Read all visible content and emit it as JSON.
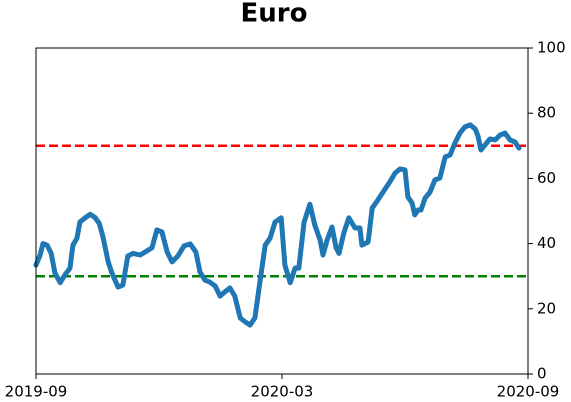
{
  "chart_data": {
    "type": "line",
    "title": "Euro",
    "x": [
      0,
      0.1,
      0.17,
      0.27,
      0.37,
      0.46,
      0.59,
      0.71,
      0.83,
      0.9,
      1,
      1.07,
      1.2,
      1.32,
      1.44,
      1.54,
      1.63,
      1.76,
      1.85,
      2,
      2.12,
      2.24,
      2.37,
      2.54,
      2.66,
      2.83,
      2.95,
      3.07,
      3.2,
      3.32,
      3.46,
      3.61,
      3.76,
      3.9,
      4,
      4.12,
      4.24,
      4.37,
      4.49,
      4.61,
      4.73,
      4.85,
      4.98,
      5.1,
      5.22,
      5.34,
      5.46,
      5.59,
      5.71,
      5.83,
      5.98,
      6.07,
      6.2,
      6.32,
      6.41,
      6.54,
      6.68,
      6.8,
      6.93,
      7,
      7.1,
      7.22,
      7.32,
      7.39,
      7.51,
      7.63,
      7.78,
      7.9,
      7.95,
      8.1,
      8.2,
      8.34,
      8.51,
      8.63,
      8.76,
      8.88,
      9,
      9.07,
      9.17,
      9.24,
      9.32,
      9.39,
      9.49,
      9.61,
      9.73,
      9.85,
      9.98,
      10.1,
      10.22,
      10.34,
      10.46,
      10.59,
      10.71,
      10.78,
      10.85,
      10.95,
      11.07,
      11.2,
      11.32,
      11.44,
      11.56,
      11.68,
      11.78
    ],
    "values": [
      33.4,
      36.5,
      40,
      39.5,
      37,
      31,
      28,
      30.5,
      32.5,
      39.5,
      41.7,
      46.6,
      47.9,
      49,
      48,
      46.3,
      42.3,
      34.4,
      31,
      26.7,
      27.3,
      36.2,
      37,
      36.5,
      37.4,
      38.7,
      44.2,
      43.6,
      37.4,
      34.4,
      36.2,
      39.3,
      39.9,
      37.4,
      31.3,
      28.8,
      28.2,
      27,
      23.9,
      25.2,
      26.4,
      23.9,
      17.2,
      16,
      15,
      17.2,
      28.2,
      39.5,
      41.7,
      46.6,
      47.9,
      33.4,
      28,
      32.5,
      32.5,
      46.6,
      52.1,
      45.7,
      41.1,
      36.5,
      41.1,
      45.1,
      38.7,
      37,
      43.3,
      47.9,
      44.8,
      44.8,
      39.5,
      40.5,
      50.9,
      53.4,
      56.7,
      58.9,
      61.7,
      62.9,
      62.6,
      54.3,
      52.5,
      48.8,
      50.3,
      50.3,
      54,
      55.8,
      59.5,
      60.1,
      66.6,
      67.2,
      70.9,
      73.9,
      75.8,
      76.4,
      75.2,
      73,
      68.7,
      70.2,
      72.1,
      71.8,
      73.3,
      73.9,
      71.8,
      71.2,
      69.3
    ],
    "color": "#1f77b4",
    "xlim": [
      0,
      12
    ],
    "xticks": [
      {
        "value": 0,
        "label": "2019-09"
      },
      {
        "value": 6,
        "label": "2020-03"
      },
      {
        "value": 12,
        "label": "2020-09"
      }
    ],
    "ylim": [
      0,
      100
    ],
    "yticks": [
      0,
      20,
      40,
      60,
      80,
      100
    ],
    "hlines": [
      {
        "value": 70,
        "color": "#ff0000"
      },
      {
        "value": 30,
        "color": "#008000"
      }
    ]
  }
}
